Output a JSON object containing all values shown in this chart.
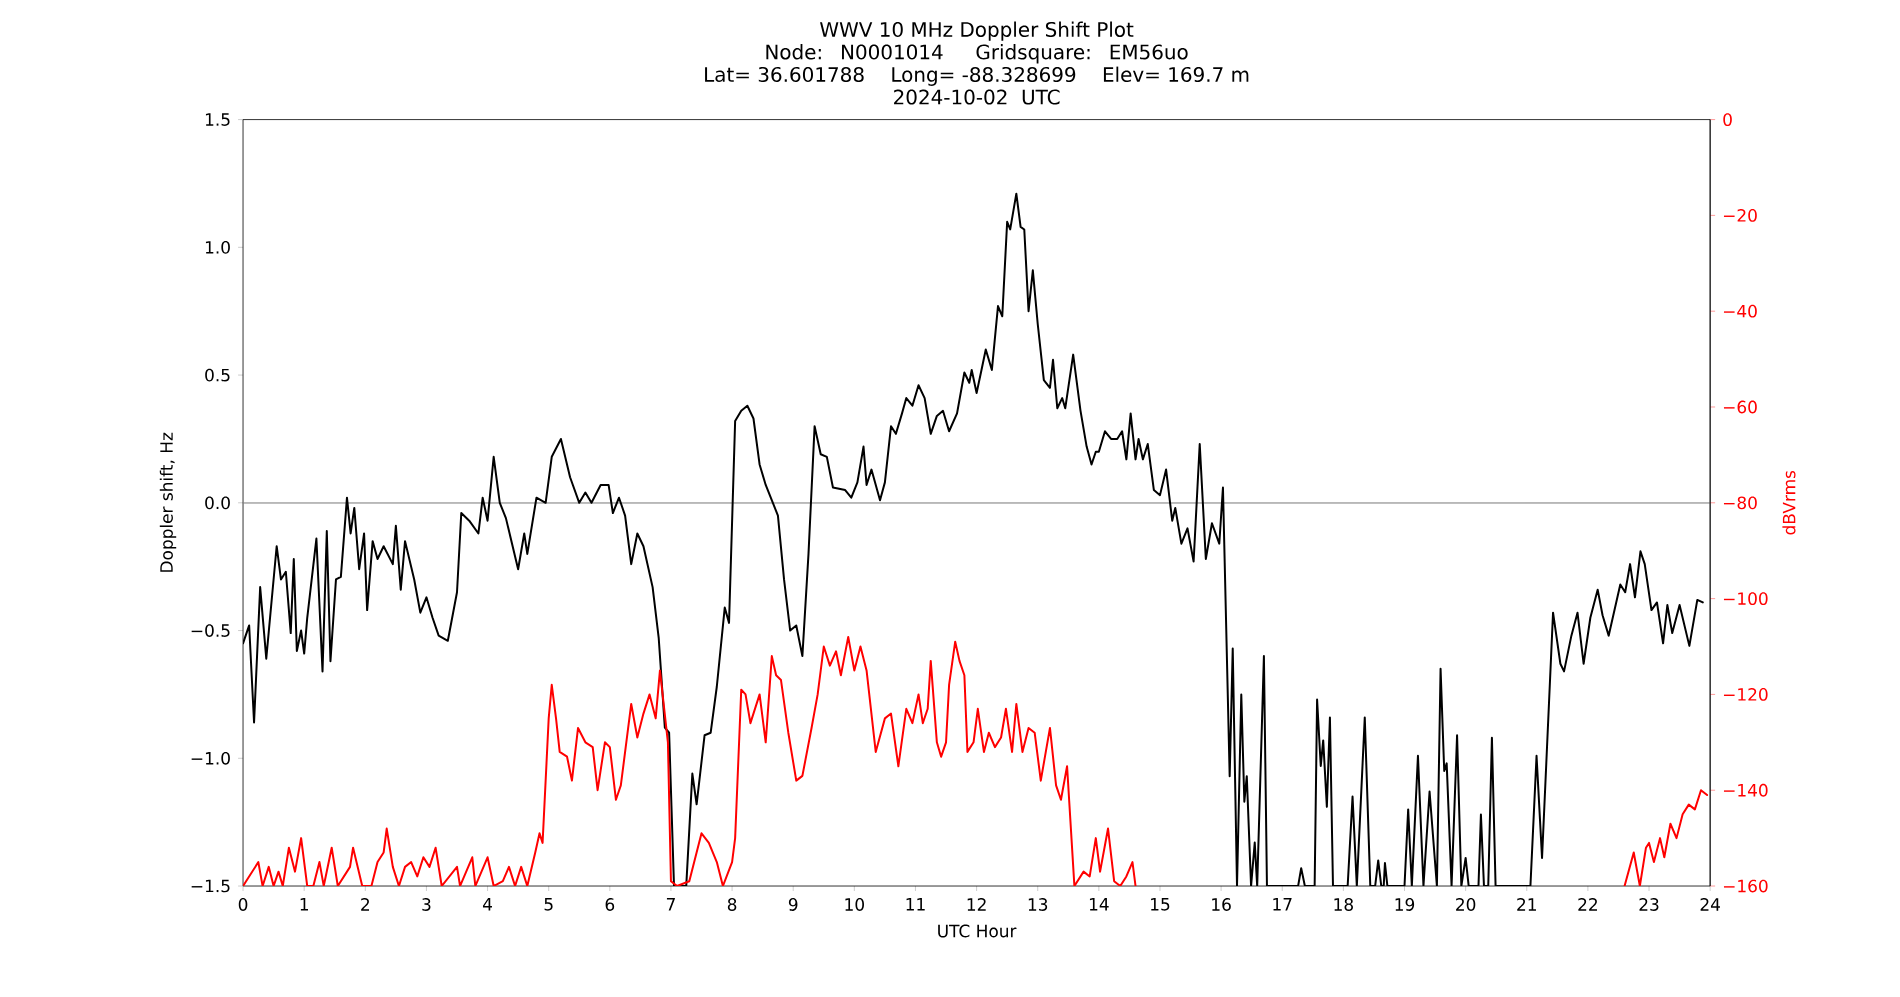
{
  "chart_data": {
    "type": "line",
    "title": "WWV 10 MHz Doppler Shift Plot",
    "subtitle": "Node:  N0001014     Gridsquare:  EM56uo",
    "annotations": [
      "Lat= 36.601788    Long= -88.328699    Elev= 169.7 m",
      "2024-10-02  UTC"
    ],
    "xlabel": "UTC Hour",
    "ylabel": "Doppler shift, Hz",
    "y2label": "dBVrms",
    "xlim": [
      0,
      24
    ],
    "xticks": [
      0,
      1,
      2,
      3,
      4,
      5,
      6,
      7,
      8,
      9,
      10,
      11,
      12,
      13,
      14,
      15,
      16,
      17,
      18,
      19,
      20,
      21,
      22,
      23,
      24
    ],
    "ylim": [
      -1.5,
      1.5
    ],
    "yticks": [
      {
        "value": -1.5,
        "label": "−1.5"
      },
      {
        "value": -1.0,
        "label": "−1.0"
      },
      {
        "value": -0.5,
        "label": "−0.5"
      },
      {
        "value": 0,
        "label": "0.0"
      },
      {
        "value": 0.5,
        "label": "0.5"
      },
      {
        "value": 1.0,
        "label": "1.0"
      },
      {
        "value": 1.5,
        "label": "1.5"
      }
    ],
    "y2lim": [
      -160,
      0
    ],
    "y2ticks": [
      {
        "value": -160,
        "label": "−160"
      },
      {
        "value": -140,
        "label": "−140"
      },
      {
        "value": -120,
        "label": "−120"
      },
      {
        "value": -100,
        "label": "−100"
      },
      {
        "value": -80,
        "label": "−80"
      },
      {
        "value": -60,
        "label": "−60"
      },
      {
        "value": -40,
        "label": "−40"
      },
      {
        "value": -20,
        "label": "−20"
      },
      {
        "value": 0,
        "label": "0"
      }
    ],
    "ref_lines": [
      {
        "axis": "y",
        "value": 0,
        "color": "#808080"
      }
    ],
    "series": [
      {
        "color": "#000000",
        "x": [
          0,
          0.1,
          0.18,
          0.28,
          0.38,
          0.55,
          0.62,
          0.7,
          0.78,
          0.83,
          0.88,
          0.95,
          1.0,
          1.05,
          1.2,
          1.3,
          1.37,
          1.43,
          1.52,
          1.6,
          1.7,
          1.76,
          1.82,
          1.9,
          1.98,
          2.03,
          2.12,
          2.2,
          2.3,
          2.45,
          2.5,
          2.58,
          2.65,
          2.8,
          2.9,
          3.0,
          3.1,
          3.2,
          3.35,
          3.5,
          3.57,
          3.7,
          3.85,
          3.92,
          4.0,
          4.1,
          4.2,
          4.3,
          4.5,
          4.6,
          4.65,
          4.8,
          4.95,
          5.05,
          5.2,
          5.35,
          5.5,
          5.6,
          5.7,
          5.85,
          5.98,
          6.05,
          6.15,
          6.25,
          6.35,
          6.45,
          6.55,
          6.7,
          6.8,
          6.9,
          6.97,
          7.05,
          7.25,
          7.35,
          7.42,
          7.55,
          7.65,
          7.75,
          7.88,
          7.95,
          8.05,
          8.15,
          8.25,
          8.35,
          8.45,
          8.55,
          8.65,
          8.75,
          8.85,
          8.95,
          9.05,
          9.15,
          9.25,
          9.35,
          9.45,
          9.55,
          9.65,
          9.85,
          9.95,
          10.05,
          10.15,
          10.2,
          10.28,
          10.42,
          10.5,
          10.6,
          10.68,
          10.78,
          10.85,
          10.95,
          11.05,
          11.15,
          11.25,
          11.35,
          11.45,
          11.55,
          11.68,
          11.8,
          11.88,
          11.92,
          12.0,
          12.08,
          12.15,
          12.25,
          12.35,
          12.42,
          12.5,
          12.55,
          12.65,
          12.72,
          12.78,
          12.85,
          12.92,
          13.0,
          13.1,
          13.2,
          13.25,
          13.32,
          13.4,
          13.45,
          13.58,
          13.7,
          13.8,
          13.88,
          13.95,
          14.0,
          14.1,
          14.2,
          14.3,
          14.38,
          14.45,
          14.52,
          14.6,
          14.65,
          14.72,
          14.8,
          14.9,
          15.0,
          15.1,
          15.2,
          15.25,
          15.35,
          15.45,
          15.55,
          15.65,
          15.75,
          15.85,
          15.97,
          16.03,
          16.14,
          16.19,
          16.26,
          16.33,
          16.38,
          16.42,
          16.49,
          16.55,
          16.59,
          16.7,
          16.75,
          17.26,
          17.31,
          17.37,
          17.53,
          17.57,
          17.63,
          17.67,
          17.73,
          17.78,
          17.83,
          18.07,
          18.15,
          18.22,
          18.35,
          18.44,
          18.52,
          18.57,
          18.62,
          18.66,
          18.68,
          18.72,
          19.0,
          19.06,
          19.12,
          19.22,
          19.31,
          19.41,
          19.53,
          19.59,
          19.65,
          19.69,
          19.77,
          19.86,
          19.93,
          20.0,
          20.05,
          20.21,
          20.25,
          20.3,
          20.37,
          20.43,
          20.49,
          21.06,
          21.16,
          21.25,
          21.43,
          21.55,
          21.61,
          21.73,
          21.83,
          21.93,
          22.04,
          22.16,
          22.24,
          22.34,
          22.53,
          22.61,
          22.69,
          22.77,
          22.86,
          22.93,
          23.04,
          23.13,
          23.23,
          23.3,
          23.38,
          23.5,
          23.66,
          23.79,
          23.88
        ],
        "values": [
          -0.55,
          -0.48,
          -0.86,
          -0.33,
          -0.61,
          -0.17,
          -0.3,
          -0.27,
          -0.51,
          -0.22,
          -0.58,
          -0.5,
          -0.59,
          -0.45,
          -0.14,
          -0.66,
          -0.11,
          -0.62,
          -0.3,
          -0.29,
          0.02,
          -0.12,
          -0.02,
          -0.26,
          -0.12,
          -0.42,
          -0.15,
          -0.22,
          -0.17,
          -0.24,
          -0.09,
          -0.34,
          -0.15,
          -0.3,
          -0.43,
          -0.37,
          -0.45,
          -0.52,
          -0.54,
          -0.35,
          -0.04,
          -0.07,
          -0.12,
          0.02,
          -0.07,
          0.18,
          0.0,
          -0.06,
          -0.26,
          -0.12,
          -0.2,
          0.02,
          0.0,
          0.18,
          0.25,
          0.1,
          0.0,
          0.04,
          0.0,
          0.07,
          0.07,
          -0.04,
          0.02,
          -0.05,
          -0.24,
          -0.12,
          -0.17,
          -0.33,
          -0.53,
          -0.88,
          -0.9,
          -1.5,
          -1.5,
          -1.06,
          -1.18,
          -0.91,
          -0.9,
          -0.72,
          -0.41,
          -0.47,
          0.32,
          0.36,
          0.38,
          0.33,
          0.15,
          0.07,
          0.01,
          -0.05,
          -0.3,
          -0.5,
          -0.48,
          -0.6,
          -0.2,
          0.3,
          0.19,
          0.18,
          0.06,
          0.05,
          0.02,
          0.08,
          0.22,
          0.07,
          0.13,
          0.01,
          0.08,
          0.3,
          0.27,
          0.35,
          0.41,
          0.38,
          0.46,
          0.41,
          0.27,
          0.34,
          0.36,
          0.28,
          0.35,
          0.51,
          0.47,
          0.52,
          0.43,
          0.52,
          0.6,
          0.52,
          0.77,
          0.73,
          1.1,
          1.07,
          1.21,
          1.08,
          1.07,
          0.75,
          0.91,
          0.7,
          0.48,
          0.45,
          0.56,
          0.37,
          0.41,
          0.37,
          0.58,
          0.36,
          0.22,
          0.15,
          0.2,
          0.2,
          0.28,
          0.25,
          0.25,
          0.28,
          0.17,
          0.35,
          0.17,
          0.25,
          0.17,
          0.23,
          0.05,
          0.03,
          0.13,
          -0.07,
          -0.02,
          -0.16,
          -0.1,
          -0.23,
          0.23,
          -0.22,
          -0.08,
          -0.16,
          0.06,
          -1.07,
          -0.57,
          -1.5,
          -0.75,
          -1.17,
          -1.07,
          -1.5,
          -1.33,
          -1.5,
          -0.6,
          -1.5,
          -1.5,
          -1.43,
          -1.5,
          -1.5,
          -0.77,
          -1.03,
          -0.93,
          -1.19,
          -0.84,
          -1.5,
          -1.5,
          -1.15,
          -1.5,
          -0.84,
          -1.5,
          -1.5,
          -1.4,
          -1.5,
          -1.5,
          -1.41,
          -1.5,
          -1.5,
          -1.2,
          -1.5,
          -0.99,
          -1.5,
          -1.13,
          -1.5,
          -0.65,
          -1.05,
          -1.02,
          -1.5,
          -0.91,
          -1.5,
          -1.39,
          -1.5,
          -1.5,
          -1.22,
          -1.5,
          -1.5,
          -0.92,
          -1.5,
          -1.5,
          -0.99,
          -1.39,
          -0.43,
          -0.63,
          -0.66,
          -0.52,
          -0.43,
          -0.63,
          -0.45,
          -0.34,
          -0.44,
          -0.52,
          -0.32,
          -0.35,
          -0.24,
          -0.37,
          -0.19,
          -0.24,
          -0.42,
          -0.39,
          -0.55,
          -0.4,
          -0.51,
          -0.4,
          -0.56,
          -0.38,
          -0.39
        ]
      },
      {
        "color": "#ff0000",
        "axis": "y2",
        "x": [
          0,
          0.25,
          0.32,
          0.42,
          0.5,
          0.58,
          0.65,
          0.75,
          0.85,
          0.95,
          1.05,
          1.15,
          1.25,
          1.32,
          1.45,
          1.55,
          1.75,
          1.8,
          1.95,
          2.1,
          2.2,
          2.3,
          2.35,
          2.45,
          2.55,
          2.65,
          2.75,
          2.85,
          2.95,
          3.05,
          3.15,
          3.25,
          3.5,
          3.55,
          3.75,
          3.8,
          4.0,
          4.1,
          4.25,
          4.35,
          4.45,
          4.55,
          4.65,
          4.78,
          4.85,
          4.9,
          5.0,
          5.05,
          5.12,
          5.18,
          5.3,
          5.38,
          5.48,
          5.6,
          5.72,
          5.8,
          5.92,
          6.0,
          6.1,
          6.18,
          6.35,
          6.45,
          6.55,
          6.65,
          6.75,
          6.82,
          6.95,
          7.0,
          7.1,
          7.3,
          7.5,
          7.62,
          7.75,
          7.85,
          8.0,
          8.05,
          8.15,
          8.22,
          8.3,
          8.45,
          8.55,
          8.65,
          8.72,
          8.8,
          8.92,
          9.05,
          9.15,
          9.3,
          9.4,
          9.5,
          9.6,
          9.7,
          9.78,
          9.9,
          10.0,
          10.1,
          10.2,
          10.35,
          10.5,
          10.6,
          10.72,
          10.85,
          10.95,
          11.05,
          11.12,
          11.2,
          11.25,
          11.35,
          11.42,
          11.5,
          11.55,
          11.65,
          11.72,
          11.8,
          11.85,
          11.95,
          12.02,
          12.12,
          12.2,
          12.3,
          12.4,
          12.48,
          12.58,
          12.65,
          12.75,
          12.85,
          12.95,
          13.05,
          13.2,
          13.3,
          13.38,
          13.48,
          13.6,
          13.75,
          13.85,
          13.95,
          14.02,
          14.15,
          14.25,
          14.35,
          14.45,
          14.55,
          14.6,
          18.5,
          22.6,
          22.75,
          22.85,
          22.95,
          23.0,
          23.08,
          23.18,
          23.25,
          23.35,
          23.45,
          23.55,
          23.65,
          23.75,
          23.85,
          23.95
        ],
        "values": [
          -160,
          -155,
          -160,
          -156,
          -160,
          -157,
          -160,
          -152,
          -157,
          -150,
          -160,
          -160,
          -155,
          -160,
          -152,
          -160,
          -156,
          -152,
          -160,
          -160,
          -155,
          -153,
          -148,
          -156,
          -160,
          -156,
          -155,
          -158,
          -154,
          -156,
          -152,
          -160,
          -156,
          -160,
          -154,
          -160,
          -154,
          -160,
          -159,
          -156,
          -160,
          -156,
          -160,
          -153,
          -149,
          -151,
          -125,
          -118,
          -125,
          -132,
          -133,
          -138,
          -127,
          -130,
          -131,
          -140,
          -130,
          -131,
          -142,
          -139,
          -122,
          -129,
          -124,
          -120,
          -125,
          -115,
          -130,
          -159,
          -160,
          -159,
          -149,
          -151,
          -155,
          -160,
          -155,
          -150,
          -119,
          -120,
          -126,
          -120,
          -130,
          -112,
          -116,
          -117,
          -128,
          -138,
          -137,
          -127,
          -120,
          -110,
          -114,
          -111,
          -116,
          -108,
          -115,
          -110,
          -115,
          -132,
          -125,
          -124,
          -135,
          -123,
          -126,
          -120,
          -126,
          -123,
          -113,
          -130,
          -133,
          -130,
          -118,
          -109,
          -113,
          -116,
          -132,
          -130,
          -123,
          -132,
          -128,
          -131,
          -129,
          -123,
          -132,
          -122,
          -132,
          -127,
          -128,
          -138,
          -127,
          -139,
          -142,
          -135,
          -160,
          -157,
          -158,
          -150,
          -157,
          -148,
          -159,
          -160,
          -158,
          -155,
          -160,
          null,
          -160,
          -153,
          -160,
          -152,
          -151,
          -155,
          -150,
          -154,
          -147,
          -150,
          -145,
          -143,
          -144,
          -140,
          -141
        ]
      }
    ]
  }
}
